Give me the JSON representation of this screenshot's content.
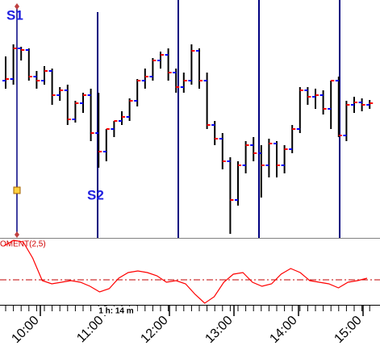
{
  "chart_data": {
    "type": "ohlc",
    "categories": [
      null,
      null,
      null,
      null,
      null,
      null,
      null,
      null,
      null,
      null,
      null,
      null,
      null,
      null,
      null,
      null,
      null,
      null,
      null,
      null,
      null,
      null,
      null,
      null,
      null,
      null,
      null,
      null,
      null,
      null,
      null,
      null,
      null,
      null,
      null,
      null,
      null,
      null,
      null,
      null,
      null,
      null,
      null,
      null,
      null,
      null,
      null,
      null
    ],
    "open": [
      200,
      202,
      240,
      238,
      205,
      200,
      212,
      182,
      188,
      152,
      172,
      182,
      135,
      112,
      140,
      150,
      155,
      175,
      200,
      205,
      225,
      232,
      210,
      192,
      200,
      237,
      200,
      145,
      128,
      100,
      52,
      95,
      120,
      110,
      95,
      122,
      95,
      115,
      140,
      188,
      180,
      182,
      165,
      200,
      132,
      170,
      173,
      170
    ],
    "high": [
      230,
      245,
      242,
      240,
      212,
      218,
      215,
      192,
      195,
      175,
      185,
      190,
      185,
      140,
      150,
      162,
      178,
      202,
      215,
      228,
      236,
      240,
      215,
      210,
      245,
      240,
      210,
      150,
      135,
      105,
      100,
      125,
      130,
      120,
      128,
      125,
      120,
      145,
      192,
      192,
      190,
      188,
      200,
      205,
      175,
      180,
      178,
      176
    ],
    "low": [
      190,
      195,
      225,
      200,
      190,
      195,
      170,
      175,
      145,
      148,
      160,
      125,
      92,
      100,
      130,
      145,
      150,
      168,
      190,
      200,
      215,
      200,
      185,
      185,
      195,
      190,
      140,
      120,
      90,
      10,
      45,
      85,
      100,
      55,
      80,
      80,
      85,
      110,
      135,
      170,
      165,
      158,
      140,
      130,
      125,
      160,
      162,
      165
    ],
    "close": [
      202,
      240,
      238,
      205,
      200,
      212,
      182,
      188,
      152,
      172,
      182,
      135,
      112,
      140,
      150,
      155,
      175,
      200,
      205,
      225,
      232,
      210,
      192,
      200,
      237,
      200,
      145,
      128,
      100,
      52,
      95,
      120,
      110,
      95,
      122,
      95,
      115,
      140,
      188,
      180,
      182,
      165,
      200,
      132,
      170,
      173,
      170,
      172
    ],
    "color": "#000000",
    "open_color": "#0000ff",
    "close_color": "#ff0000",
    "ylim": [
      5,
      300
    ],
    "markers": [
      {
        "label": "S1"
      },
      {
        "label": "S2"
      }
    ],
    "oscillator": {
      "label": "OMENT(2,5)",
      "color": "#ff0000",
      "ylim": [
        0,
        82
      ],
      "level": 31,
      "values": [
        73,
        80,
        78,
        58,
        30,
        26,
        28,
        30,
        28,
        23,
        16,
        20,
        33,
        40,
        42,
        40,
        36,
        28,
        30,
        26,
        13,
        2,
        10,
        28,
        38,
        40,
        28,
        23,
        26,
        38,
        45,
        40,
        30,
        28,
        26,
        21,
        28,
        30,
        33
      ]
    },
    "scale_label": "1 h: 14 m",
    "time_labels": [
      "10:00",
      "11:00",
      "12:00",
      "13:00",
      "14:00",
      "15:00"
    ]
  }
}
